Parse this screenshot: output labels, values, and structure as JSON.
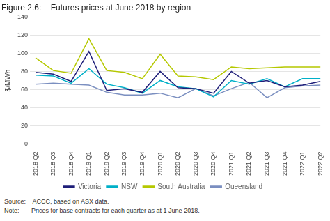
{
  "chart_data": {
    "type": "line",
    "title": "Figure 2.6:    Futures prices at June 2018 by region",
    "y_label": "$/MWh",
    "categories": [
      "2018 Q2",
      "2018 Q3",
      "2018 Q4",
      "2019 Q1",
      "2019 Q2",
      "2019 Q3",
      "2019 Q4",
      "2020 Q1",
      "2020 Q2",
      "2020 Q3",
      "2020 Q4",
      "2021 Q1",
      "2021 Q2",
      "2021 Q3",
      "2021 Q4",
      "2022 Q1",
      "2022 Q2"
    ],
    "series": [
      {
        "name": "Victoria",
        "color": "#1f1f7a",
        "values": [
          79,
          77,
          69,
          102,
          59,
          61,
          57,
          80,
          62,
          61,
          56,
          80,
          67,
          70,
          63,
          65,
          69
        ]
      },
      {
        "name": "NSW",
        "color": "#00b0c8",
        "values": [
          76,
          75,
          67,
          83,
          66,
          62,
          56,
          70,
          63,
          61,
          52,
          70,
          66,
          72,
          63,
          72,
          72
        ]
      },
      {
        "name": "South Australia",
        "color": "#b5c800",
        "values": [
          95,
          81,
          78,
          116,
          81,
          79,
          72,
          99,
          75,
          74,
          71,
          85,
          83,
          84,
          85,
          85,
          85
        ]
      },
      {
        "name": "Queensland",
        "color": "#7b8fc0",
        "values": [
          66,
          67,
          66,
          65,
          57,
          54,
          54,
          56,
          51,
          61,
          53,
          61,
          68,
          51,
          62,
          64,
          65
        ]
      }
    ],
    "ylim": [
      0,
      140
    ],
    "yticks": [
      0,
      20,
      40,
      60,
      80,
      100,
      120,
      140
    ],
    "grid": "y",
    "legend": "bottom",
    "annotations": [
      "Source:    ACCC, based on ASX data.",
      "Note:       Prices for base contracts for each quarter as at 1 June 2018."
    ]
  }
}
